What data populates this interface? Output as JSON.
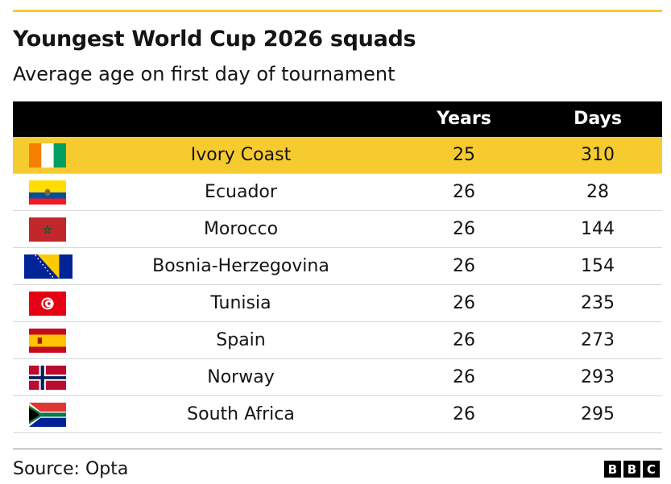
{
  "title": "Youngest World Cup 2026 squads",
  "subtitle": "Average age on first day of tournament",
  "columns": {
    "years": "Years",
    "days": "Days"
  },
  "colors": {
    "accent": "#f6cb2f",
    "header_bg": "#000000",
    "highlight_row": "#f6cb2f"
  },
  "chart_data": {
    "type": "table",
    "title": "Youngest World Cup 2026 squads",
    "subtitle": "Average age on first day of tournament",
    "columns": [
      "",
      "",
      "Years",
      "Days"
    ],
    "rows": [
      {
        "flag": "ivory-coast-flag",
        "country": "Ivory Coast",
        "years": "25",
        "days": "310",
        "highlighted": true
      },
      {
        "flag": "ecuador-flag",
        "country": "Ecuador",
        "years": "26",
        "days": "28"
      },
      {
        "flag": "morocco-flag",
        "country": "Morocco",
        "years": "26",
        "days": "144"
      },
      {
        "flag": "bosnia-herzegovina-flag",
        "country": "Bosnia-Herzegovina",
        "years": "26",
        "days": "154"
      },
      {
        "flag": "tunisia-flag",
        "country": "Tunisia",
        "years": "26",
        "days": "235"
      },
      {
        "flag": "spain-flag",
        "country": "Spain",
        "years": "26",
        "days": "273"
      },
      {
        "flag": "norway-flag",
        "country": "Norway",
        "years": "26",
        "days": "293"
      },
      {
        "flag": "south-africa-flag",
        "country": "South Africa",
        "years": "26",
        "days": "295"
      }
    ]
  },
  "footer": {
    "source": "Source: Opta",
    "logo_letters": [
      "B",
      "B",
      "C"
    ]
  }
}
